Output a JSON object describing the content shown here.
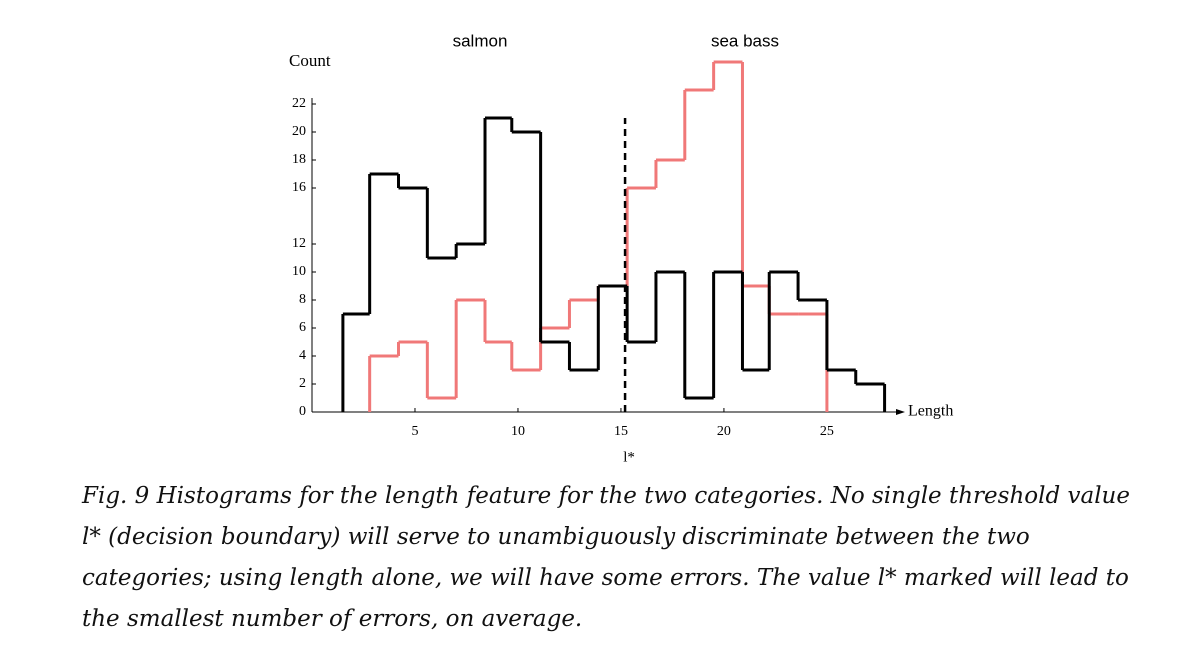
{
  "chart_data": {
    "type": "histogram",
    "y_label": "Count",
    "x_label": "Length",
    "series": [
      {
        "name": "salmon",
        "color": "#000000",
        "bins": [
          1.5,
          2.8,
          4.2,
          5.6,
          7.0,
          8.4,
          9.7,
          11.1,
          12.5,
          13.9,
          15.3,
          16.7,
          18.1,
          19.5,
          20.9,
          22.2,
          23.6,
          25.0,
          26.4,
          27.8
        ],
        "values": [
          7,
          17,
          16,
          11,
          12,
          21,
          20,
          5,
          3,
          9,
          5,
          10,
          1,
          10,
          3,
          10,
          8,
          3,
          2
        ]
      },
      {
        "name": "sea bass",
        "color": "#f07878",
        "bins": [
          2.8,
          4.2,
          5.6,
          7.0,
          8.4,
          9.7,
          11.1,
          12.5,
          13.9,
          15.3,
          16.7,
          18.1,
          19.5,
          20.9,
          22.2,
          23.6,
          25.0
        ],
        "values": [
          4,
          5,
          1,
          8,
          5,
          3,
          6,
          8,
          9,
          16,
          18,
          23,
          25,
          9,
          7,
          7
        ]
      }
    ],
    "threshold": {
      "value": 15.2,
      "label": "l*"
    },
    "xlim": [
      0,
      28.5
    ],
    "xticks": [
      5,
      10,
      15,
      20,
      25
    ],
    "ylim": [
      0,
      25
    ],
    "yticks": [
      0,
      2,
      4,
      6,
      8,
      10,
      12,
      16,
      18,
      20,
      22
    ],
    "caption": [
      "Fig. 9 Histograms for the length feature for the two categories. No single threshold value",
      "l* (decision boundary) will serve to unambiguously discriminate between the two",
      "categories; using length alone, we will have some errors. The value l* marked will lead to",
      "the smallest number of errors, on average."
    ]
  }
}
